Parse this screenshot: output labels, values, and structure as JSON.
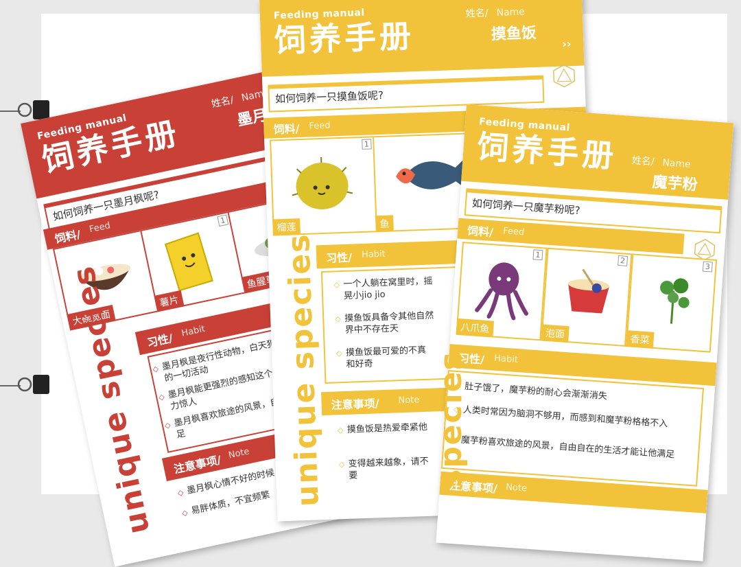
{
  "cards": {
    "red": {
      "en_title": "Feeding manual",
      "zh_title": "饲养手册",
      "name_label": "姓名/",
      "name_label_en": "Name",
      "name": "墨月枫",
      "question": "如何饲养一只墨月枫呢?",
      "feed_title": "饲料/",
      "feed_sub": "Feed",
      "feeds": [
        {
          "num": "",
          "label": "大碗宽面"
        },
        {
          "num": "1",
          "label": "薯片"
        },
        {
          "num": "2",
          "label": "鱼腥草"
        }
      ],
      "habit_title": "习性/",
      "habit_sub": "Habit",
      "habits": [
        "墨月枫是夜行性动物，白天犯困，睡觉外的一切活动",
        "墨月枫能更强烈的感知这个世界，绪的能力惊人",
        "墨月枫喜欢旅途的风景，自由自在让他满足"
      ],
      "note_title": "注意事项/",
      "note_sub": "Note",
      "notes": [
        "墨月枫心情不好的时候，就给",
        "易胖体质，不宜频繁"
      ],
      "species": "unique species"
    },
    "yellow_mid": {
      "en_title": "Feeding manual",
      "zh_title": "饲养手册",
      "name_label": "姓名/",
      "name_label_en": "Name",
      "name": "摸鱼饭",
      "question": "如何饲养一只摸鱼饭呢?",
      "feed_title": "饲料/",
      "feed_sub": "Feed",
      "feeds": [
        {
          "num": "1",
          "label": "榴莲"
        },
        {
          "num": "",
          "label": "鱼"
        }
      ],
      "habit_title": "习性/",
      "habit_sub": "Habit",
      "habits": [
        "一个人躺在窝里时，摇晃小jio jio",
        "摸鱼饭具备令其他自然界中不存在天",
        "摸鱼饭最可爱的不真和好奇"
      ],
      "note_title": "注意事项/",
      "note_sub": "Note",
      "notes": [
        "摸鱼饭是热爱牵紧他",
        "变得越来越象，请不要"
      ],
      "species": "unique species"
    },
    "yellow_front": {
      "en_title": "Feeding manual",
      "zh_title": "饲养手册",
      "name_label": "姓名/",
      "name_label_en": "Name",
      "name": "魔芋粉",
      "question": "如何饲养一只魔芋粉呢?",
      "feed_title": "饲料/",
      "feed_sub": "Feed",
      "feeds": [
        {
          "num": "1",
          "label": "八爪鱼"
        },
        {
          "num": "2",
          "label": "泡面"
        },
        {
          "num": "3",
          "label": "香菜"
        }
      ],
      "habit_title": "习性/",
      "habit_sub": "Habit",
      "habits": [
        "肚子饿了，魔芋粉的耐心会渐渐消失",
        "人类时常因为脑洞不够用，而感到和魔芋粉格格不入",
        "魔芋粉喜欢旅途的风景，自由自在的生活才能让他满足"
      ],
      "note_title": "注意事项/",
      "note_sub": "Note",
      "species": "species"
    }
  },
  "colors": {
    "red": "#c94136",
    "yellow": "#f2c33a"
  }
}
